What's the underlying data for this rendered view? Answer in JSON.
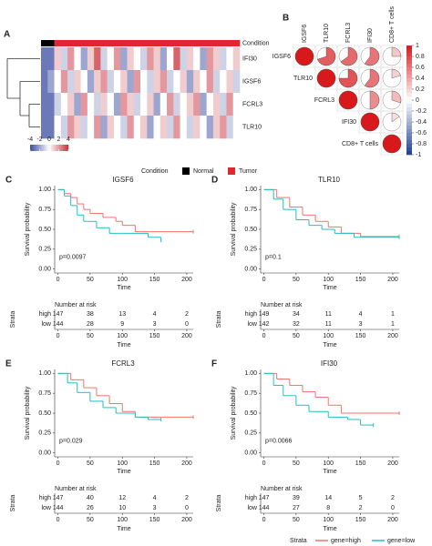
{
  "chart_data": [
    {
      "panel": "A",
      "type": "heatmap",
      "rows": [
        "IFI30",
        "IGSF6",
        "FCRL3",
        "TLR10"
      ],
      "column_conditions": [
        "Normal",
        "Normal",
        "Tumor",
        "Tumor",
        "Tumor",
        "Tumor",
        "Tumor",
        "Tumor",
        "Tumor",
        "Tumor",
        "Tumor",
        "Tumor",
        "Tumor",
        "Tumor",
        "Tumor",
        "Tumor",
        "Tumor",
        "Tumor",
        "Tumor",
        "Tumor",
        "Tumor",
        "Tumor",
        "Tumor",
        "Tumor",
        "Tumor",
        "Tumor",
        "Tumor",
        "Tumor",
        "Tumor",
        "Tumor"
      ],
      "values": [
        [
          -3,
          -3,
          1,
          -1,
          2,
          0,
          -2,
          1,
          3,
          -1,
          0,
          2,
          -2,
          1,
          0,
          -1,
          2,
          1,
          -2,
          0,
          3,
          -1,
          1,
          0,
          -2,
          2,
          1,
          -1,
          0,
          1
        ],
        [
          -3,
          -2,
          0,
          2,
          -1,
          1,
          0,
          -2,
          1,
          2,
          -1,
          0,
          1,
          -2,
          2,
          0,
          -1,
          1,
          2,
          -1,
          0,
          1,
          -2,
          1,
          0,
          2,
          -1,
          0,
          1,
          -1
        ],
        [
          -3,
          -3,
          -1,
          0,
          1,
          -2,
          2,
          0,
          -1,
          1,
          0,
          -2,
          2,
          1,
          -1,
          0,
          1,
          -2,
          0,
          2,
          -1,
          0,
          1,
          2,
          -2,
          0,
          1,
          -1,
          2,
          0
        ],
        [
          -3,
          -3,
          0,
          -1,
          2,
          1,
          -1,
          0,
          2,
          -2,
          1,
          0,
          -1,
          2,
          0,
          1,
          -2,
          0,
          1,
          -1,
          2,
          0,
          -1,
          1,
          0,
          -2,
          1,
          2,
          -1,
          0
        ]
      ],
      "clim": [
        -4,
        4
      ],
      "colorbar_ticks": [
        -4,
        -2,
        0,
        2,
        4
      ],
      "colors": {
        "low": "#3b4ca0",
        "mid": "#ffffff",
        "high": "#c8313a"
      },
      "condition_label": "Condition",
      "legend_title": "Condition",
      "condition_legend": [
        {
          "name": "Normal",
          "color": "#000000"
        },
        {
          "name": "Tumor",
          "color": "#e0262f"
        }
      ]
    },
    {
      "panel": "B",
      "type": "correlogram",
      "variables": [
        "IGSF6",
        "TLR10",
        "FCRL3",
        "IFI30",
        "CD8+ T cells"
      ],
      "values": [
        [
          1,
          0.7,
          0.65,
          0.6,
          0.25
        ],
        [
          null,
          1,
          0.75,
          0.6,
          0.2
        ],
        [
          null,
          null,
          1,
          0.5,
          0.3
        ],
        [
          null,
          null,
          null,
          1,
          0.15
        ],
        [
          null,
          null,
          null,
          null,
          1
        ]
      ],
      "clim": [
        -1,
        1
      ],
      "colorbar_ticks": [
        1,
        0.8,
        0.6,
        0.4,
        0.2,
        0,
        -0.2,
        -0.4,
        -0.6,
        -0.8,
        -1
      ],
      "colors": {
        "low": "#1f3f8f",
        "mid": "#ffffff",
        "high": "#d7191c"
      },
      "label_color": "#e31a1c"
    },
    {
      "panel": "C",
      "type": "survival",
      "title": "IGSF6",
      "ylabel": "Survival probability",
      "xlabel": "Time",
      "xlim": [
        -5,
        210
      ],
      "xticks": [
        0,
        50,
        100,
        150,
        200
      ],
      "ylim": [
        -0.05,
        1.05
      ],
      "yticks": [
        {
          "value": 0,
          "label": "0.00"
        },
        {
          "value": 0.25,
          "label": "0.25"
        },
        {
          "value": 0.5,
          "label": "0.50"
        },
        {
          "value": 0.75,
          "label": "0.75"
        },
        {
          "value": 1,
          "label": "1.00"
        }
      ],
      "annotation": "p=0.0097",
      "series": [
        {
          "name": "high",
          "color": "#f0736a",
          "x": [
            0,
            10,
            20,
            30,
            40,
            50,
            70,
            90,
            100,
            120,
            210
          ],
          "values": [
            1,
            0.95,
            0.9,
            0.82,
            0.75,
            0.7,
            0.65,
            0.6,
            0.55,
            0.47,
            0.47
          ],
          "at_risk": [
            147,
            38,
            13,
            4,
            2
          ]
        },
        {
          "name": "low",
          "color": "#22bfc4",
          "x": [
            0,
            10,
            20,
            30,
            40,
            60,
            80,
            100,
            140,
            160
          ],
          "values": [
            1,
            0.92,
            0.8,
            0.68,
            0.6,
            0.52,
            0.45,
            0.45,
            0.4,
            0.36
          ],
          "at_risk": [
            144,
            28,
            9,
            3,
            0
          ]
        }
      ],
      "risk_table": {
        "title": "Number at risk",
        "strata_label": "Strata",
        "xlabel": "Time",
        "xticks": [
          0,
          50,
          100,
          150,
          200
        ]
      }
    },
    {
      "panel": "D",
      "type": "survival",
      "title": "TLR10",
      "ylabel": "Survival probability",
      "xlabel": "Time",
      "xlim": [
        -5,
        210
      ],
      "xticks": [
        0,
        50,
        100,
        150,
        200
      ],
      "ylim": [
        -0.05,
        1.05
      ],
      "yticks": [
        {
          "value": 0,
          "label": "0.00"
        },
        {
          "value": 0.25,
          "label": "0.25"
        },
        {
          "value": 0.5,
          "label": "0.50"
        },
        {
          "value": 0.75,
          "label": "0.75"
        },
        {
          "value": 1,
          "label": "1.00"
        }
      ],
      "annotation": "p=0.1",
      "series": [
        {
          "name": "high",
          "color": "#f0736a",
          "x": [
            0,
            20,
            40,
            60,
            80,
            100,
            120,
            150,
            210
          ],
          "values": [
            1,
            0.9,
            0.78,
            0.68,
            0.6,
            0.53,
            0.45,
            0.41,
            0.41
          ],
          "at_risk": [
            149,
            34,
            11,
            4,
            1
          ]
        },
        {
          "name": "low",
          "color": "#22bfc4",
          "x": [
            0,
            15,
            30,
            50,
            70,
            90,
            110,
            140,
            210
          ],
          "values": [
            1,
            0.88,
            0.75,
            0.62,
            0.55,
            0.5,
            0.45,
            0.4,
            0.4
          ],
          "at_risk": [
            142,
            32,
            11,
            3,
            1
          ]
        }
      ],
      "risk_table": {
        "title": "Number at risk",
        "strata_label": "Strata",
        "xlabel": "Time",
        "xticks": [
          0,
          50,
          100,
          150,
          200
        ]
      }
    },
    {
      "panel": "E",
      "type": "survival",
      "title": "FCRL3",
      "ylabel": "Survival probability",
      "xlabel": "Time",
      "xlim": [
        -5,
        210
      ],
      "xticks": [
        0,
        50,
        100,
        150,
        200
      ],
      "ylim": [
        -0.05,
        1.05
      ],
      "yticks": [
        {
          "value": 0,
          "label": "0.00"
        },
        {
          "value": 0.25,
          "label": "0.25"
        },
        {
          "value": 0.5,
          "label": "0.50"
        },
        {
          "value": 0.75,
          "label": "0.75"
        },
        {
          "value": 1,
          "label": "1.00"
        }
      ],
      "annotation": "p=0.029",
      "series": [
        {
          "name": "high",
          "color": "#f0736a",
          "x": [
            0,
            20,
            40,
            60,
            80,
            100,
            120,
            210
          ],
          "values": [
            1,
            0.92,
            0.82,
            0.72,
            0.62,
            0.52,
            0.45,
            0.45
          ],
          "at_risk": [
            147,
            40,
            12,
            4,
            2
          ]
        },
        {
          "name": "low",
          "color": "#22bfc4",
          "x": [
            0,
            15,
            30,
            50,
            70,
            90,
            120,
            140,
            160
          ],
          "values": [
            1,
            0.88,
            0.76,
            0.65,
            0.57,
            0.5,
            0.45,
            0.42,
            0.42
          ],
          "at_risk": [
            144,
            26,
            10,
            3,
            0
          ]
        }
      ],
      "risk_table": {
        "title": "Number at risk",
        "strata_label": "Strata",
        "xlabel": "Time",
        "xticks": [
          0,
          50,
          100,
          150,
          200
        ]
      }
    },
    {
      "panel": "F",
      "type": "survival",
      "title": "IFI30",
      "ylabel": "Survival probability",
      "xlabel": "Time",
      "xlim": [
        -5,
        210
      ],
      "xticks": [
        0,
        50,
        100,
        150,
        200
      ],
      "ylim": [
        -0.05,
        1.05
      ],
      "yticks": [
        {
          "value": 0,
          "label": "0.00"
        },
        {
          "value": 0.25,
          "label": "0.25"
        },
        {
          "value": 0.5,
          "label": "0.50"
        },
        {
          "value": 0.75,
          "label": "0.75"
        },
        {
          "value": 1,
          "label": "1.00"
        }
      ],
      "annotation": "p=0.0066",
      "series": [
        {
          "name": "high",
          "color": "#f0736a",
          "x": [
            0,
            20,
            40,
            60,
            80,
            100,
            120,
            210
          ],
          "values": [
            1,
            0.93,
            0.85,
            0.77,
            0.7,
            0.6,
            0.5,
            0.5
          ],
          "at_risk": [
            147,
            39,
            14,
            5,
            2
          ]
        },
        {
          "name": "low",
          "color": "#22bfc4",
          "x": [
            0,
            15,
            30,
            50,
            70,
            100,
            130,
            150,
            170
          ],
          "values": [
            1,
            0.85,
            0.72,
            0.6,
            0.52,
            0.45,
            0.42,
            0.35,
            0.35
          ],
          "at_risk": [
            144,
            27,
            8,
            2,
            0
          ]
        }
      ],
      "risk_table": {
        "title": "Number at risk",
        "strata_label": "Strata",
        "xlabel": "Time",
        "xticks": [
          0,
          50,
          100,
          150,
          200
        ]
      }
    }
  ],
  "shared_legend": {
    "title": "Strata",
    "items": [
      {
        "name": "gene=high",
        "color": "#f0736a"
      },
      {
        "name": "gene=low",
        "color": "#22bfc4"
      }
    ]
  }
}
